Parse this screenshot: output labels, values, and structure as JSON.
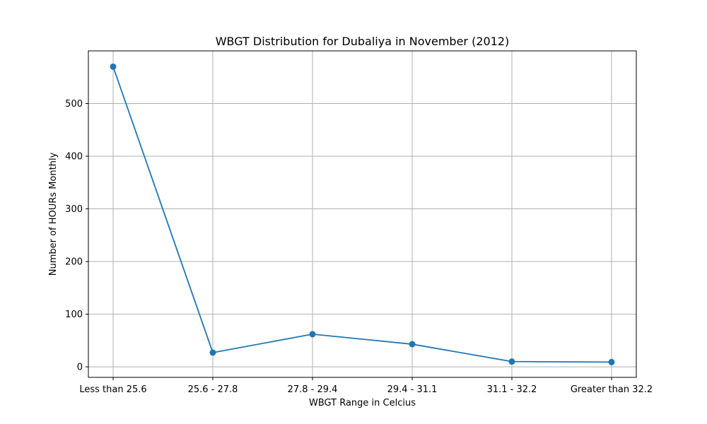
{
  "chart_data": {
    "type": "line",
    "title": "WBGT Distribution for Dubaliya in November (2012)",
    "xlabel": "WBGT Range in Celcius",
    "ylabel": "Number of HOURs Monthly",
    "categories": [
      "Less than 25.6",
      "25.6 - 27.8",
      "27.8 - 29.4",
      "29.4 - 31.1",
      "31.1 - 32.2",
      "Greater than 32.2"
    ],
    "series": [
      {
        "values": [
          570,
          27,
          62,
          43,
          10,
          9
        ]
      }
    ],
    "ylim": [
      -20,
      600
    ],
    "yticks": [
      0,
      100,
      200,
      300,
      400,
      500
    ],
    "grid": true,
    "line_color": "#1f77b4"
  }
}
